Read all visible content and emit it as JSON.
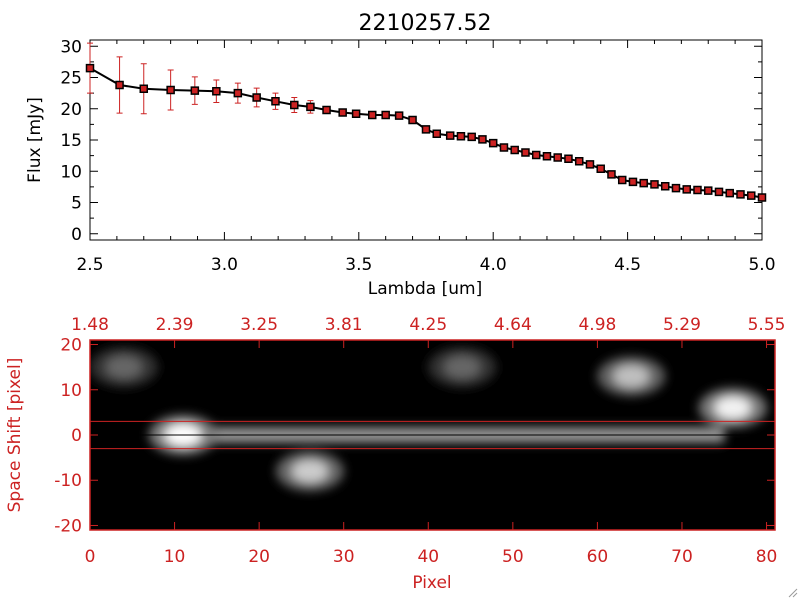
{
  "title": "2210257.52",
  "colors": {
    "axis": "#000000",
    "accent": "#cc2222",
    "error_bars": "#cc2222",
    "markers": "#cc2222"
  },
  "chart_data": [
    {
      "type": "line",
      "title": "2210257.52",
      "xlabel": "Lambda [um]",
      "ylabel": "Flux [mJy]",
      "xlim": [
        2.5,
        5.0
      ],
      "ylim": [
        -1,
        31
      ],
      "grid": false,
      "x_ticks": [
        "2.5",
        "3.0",
        "3.5",
        "4.0",
        "4.5",
        "5.0"
      ],
      "y_ticks": [
        "0",
        "5",
        "10",
        "15",
        "20",
        "25",
        "30"
      ],
      "series": [
        {
          "x": [
            2.5,
            2.61,
            2.7,
            2.8,
            2.89,
            2.97,
            3.05,
            3.12,
            3.19,
            3.26,
            3.32,
            3.38,
            3.44,
            3.49,
            3.55,
            3.6,
            3.65,
            3.7,
            3.75,
            3.79,
            3.84,
            3.88,
            3.92,
            3.96,
            4.0,
            4.04,
            4.08,
            4.12,
            4.16,
            4.2,
            4.24,
            4.28,
            4.32,
            4.36,
            4.4,
            4.44,
            4.48,
            4.52,
            4.56,
            4.6,
            4.64,
            4.68,
            4.72,
            4.76,
            4.8,
            4.84,
            4.88,
            4.92,
            4.96,
            5.0
          ],
          "y": [
            26.5,
            23.8,
            23.2,
            23.0,
            22.9,
            22.8,
            22.5,
            21.8,
            21.2,
            20.6,
            20.3,
            19.8,
            19.4,
            19.2,
            19.0,
            19.0,
            18.9,
            18.2,
            16.7,
            16.0,
            15.7,
            15.6,
            15.5,
            15.1,
            14.5,
            13.8,
            13.4,
            13.0,
            12.6,
            12.4,
            12.2,
            12.0,
            11.6,
            11.1,
            10.4,
            9.5,
            8.6,
            8.3,
            8.1,
            7.9,
            7.6,
            7.3,
            7.1,
            7.0,
            6.9,
            6.7,
            6.5,
            6.3,
            6.1,
            5.8
          ],
          "err": [
            4.0,
            4.5,
            4.0,
            3.2,
            2.2,
            1.8,
            1.6,
            1.5,
            1.3,
            1.2,
            1.0,
            0.5,
            0.5,
            0.5,
            0.5,
            0.5,
            0.5,
            0.5,
            0.5,
            0.5,
            0.5,
            0.5,
            0.5,
            0.5,
            0.5,
            0.5,
            0.5,
            0.5,
            0.5,
            0.5,
            0.5,
            0.5,
            0.5,
            0.5,
            0.5,
            0.5,
            0.5,
            0.5,
            0.5,
            0.5,
            0.5,
            0.5,
            0.5,
            0.5,
            0.5,
            0.5,
            0.5,
            0.5,
            0.5,
            0.5
          ]
        }
      ]
    },
    {
      "type": "heatmap",
      "xlabel": "Pixel",
      "ylabel": "Space Shift [pixel]",
      "xlim": [
        0,
        81
      ],
      "ylim": [
        -21,
        21
      ],
      "x_ticks": [
        "0",
        "10",
        "20",
        "30",
        "40",
        "50",
        "60",
        "70",
        "80"
      ],
      "y_ticks": [
        "-20",
        "-10",
        "0",
        "10",
        "20"
      ],
      "top_axis_ticks": [
        "1.48",
        "2.39",
        "3.25",
        "3.81",
        "4.25",
        "4.64",
        "4.98",
        "5.29",
        "5.55"
      ],
      "extraction_lines": [
        -3,
        3
      ],
      "center_line": 0,
      "colormap": "grayscale",
      "features": [
        {
          "kind": "trace",
          "x": [
            8,
            75
          ],
          "y": 0,
          "intensity": 0.65
        },
        {
          "kind": "blob",
          "x": 11,
          "y": 0,
          "intensity": 1.0
        },
        {
          "kind": "blob",
          "x": 26,
          "y": -8,
          "intensity": 0.8
        },
        {
          "kind": "blob",
          "x": 76,
          "y": 6,
          "intensity": 0.95
        },
        {
          "kind": "blob",
          "x": 64,
          "y": 13,
          "intensity": 0.75
        },
        {
          "kind": "blob",
          "x": 44,
          "y": 15,
          "intensity": 0.4
        },
        {
          "kind": "blob",
          "x": 4,
          "y": 15,
          "intensity": 0.4
        }
      ]
    }
  ]
}
